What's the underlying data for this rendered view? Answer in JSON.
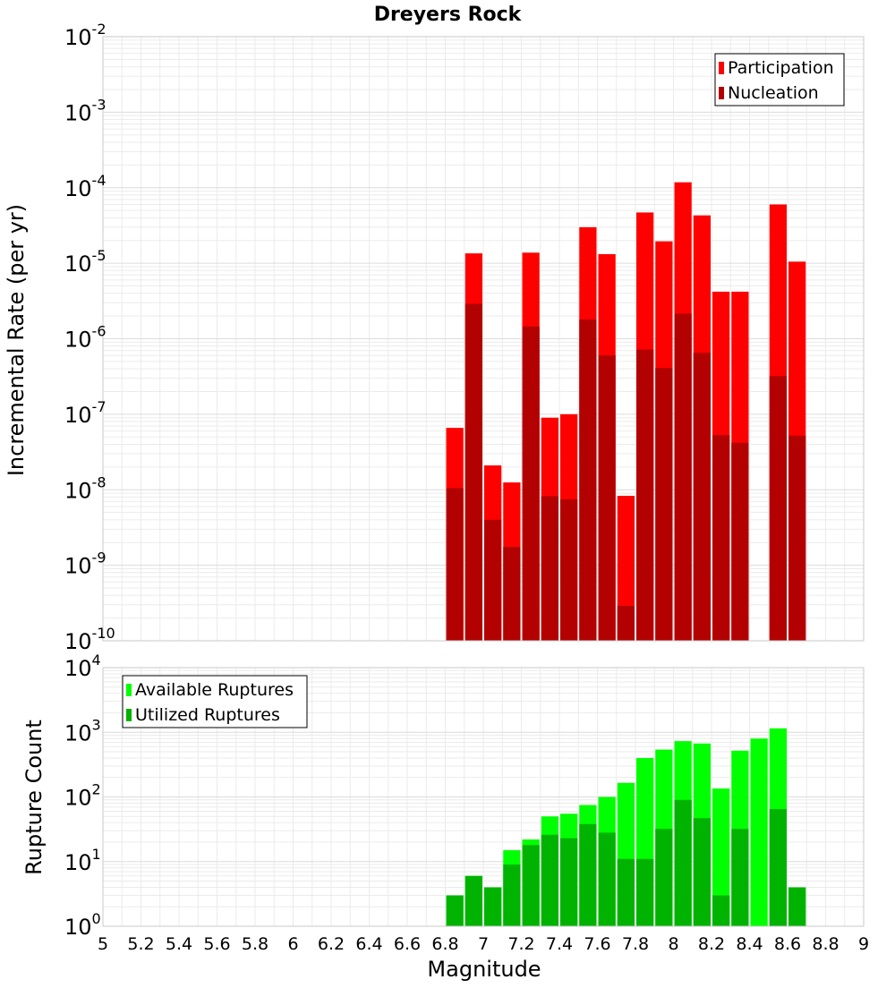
{
  "chart_data": [
    {
      "type": "bar",
      "title": "Dreyers Rock",
      "xlabel": "",
      "ylabel": "Incremental Rate (per yr)",
      "yscale": "log",
      "ylim_exponents": [
        -10,
        -2
      ],
      "xlim": [
        5,
        9
      ],
      "bin_width": 0.1,
      "grid": true,
      "legend_position": "top-right",
      "series": [
        {
          "name": "Participation",
          "color": "#ff0000",
          "x": [
            6.85,
            6.95,
            7.05,
            7.15,
            7.25,
            7.35,
            7.45,
            7.55,
            7.65,
            7.75,
            7.85,
            7.95,
            8.05,
            8.15,
            8.25,
            8.35,
            8.55,
            8.65
          ],
          "values": [
            6.6e-08,
            1.35e-05,
            2.1e-08,
            1.25e-08,
            1.38e-05,
            9e-08,
            1e-07,
            3e-05,
            1.32e-05,
            8.3e-09,
            4.7e-05,
            1.95e-05,
            0.000118,
            4.3e-05,
            4.2e-06,
            4.2e-06,
            6e-05,
            1.05e-05
          ]
        },
        {
          "name": "Nucleation",
          "color": "#b30000",
          "x": [
            6.85,
            6.95,
            7.05,
            7.15,
            7.25,
            7.35,
            7.45,
            7.55,
            7.65,
            7.75,
            7.85,
            7.95,
            8.05,
            8.15,
            8.25,
            8.35,
            8.55,
            8.65
          ],
          "values": [
            1.05e-08,
            2.9e-06,
            4e-09,
            1.75e-09,
            1.45e-06,
            8.2e-09,
            7.5e-09,
            1.8e-06,
            6e-07,
            2.9e-10,
            7.2e-07,
            4.1e-07,
            2.15e-06,
            6.5e-07,
            5.3e-08,
            4.2e-08,
            3.2e-07,
            5.2e-08
          ]
        }
      ]
    },
    {
      "type": "bar",
      "title": "",
      "xlabel": "Magnitude",
      "ylabel": "Rupture Count",
      "yscale": "log",
      "ylim_exponents": [
        0,
        4
      ],
      "xlim": [
        5,
        9
      ],
      "bin_width": 0.1,
      "x_ticks": [
        "5",
        "5.2",
        "5.4",
        "5.6",
        "5.8",
        "6",
        "6.2",
        "6.4",
        "6.6",
        "6.8",
        "7",
        "7.2",
        "7.4",
        "7.6",
        "7.8",
        "8",
        "8.2",
        "8.4",
        "8.6",
        "8.8",
        "9"
      ],
      "grid": true,
      "legend_position": "top-left",
      "series": [
        {
          "name": "Available Ruptures",
          "color": "#00ff00",
          "x": [
            6.35,
            6.65,
            6.75,
            6.85,
            6.95,
            7.05,
            7.15,
            7.25,
            7.35,
            7.45,
            7.55,
            7.65,
            7.75,
            7.85,
            7.95,
            8.05,
            8.15,
            8.25,
            8.35,
            8.45,
            8.55,
            8.65
          ],
          "values": [
            1,
            1,
            1,
            3,
            6,
            4,
            15,
            22,
            50,
            55,
            75,
            100,
            165,
            400,
            540,
            730,
            670,
            135,
            520,
            800,
            1150,
            4
          ]
        },
        {
          "name": "Utilized Ruptures",
          "color": "#00b300",
          "x": [
            6.85,
            6.95,
            7.05,
            7.15,
            7.25,
            7.35,
            7.45,
            7.55,
            7.65,
            7.75,
            7.85,
            7.95,
            8.05,
            8.15,
            8.25,
            8.35,
            8.55,
            8.65
          ],
          "values": [
            3,
            6,
            4,
            9,
            18,
            26,
            23,
            38,
            28,
            11,
            11,
            32,
            90,
            47,
            3,
            32,
            65,
            4
          ]
        }
      ]
    }
  ]
}
